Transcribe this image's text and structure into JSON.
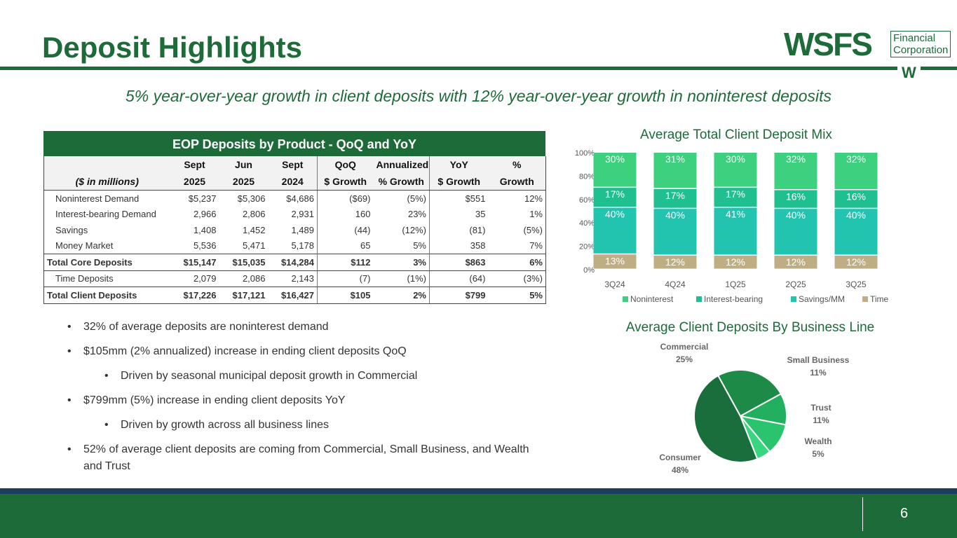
{
  "header": {
    "title": "Deposit Highlights",
    "subtitle": "5% year-over-year growth in client deposits with 12% year-over-year growth in noninterest deposits",
    "logo": {
      "main": "WSFS",
      "sub_line1": "Financial",
      "sub_line2": "Corporation",
      "mark": "W"
    }
  },
  "colors": {
    "brand_green": "#1e6b3a",
    "noninterest": "#3dd17f",
    "interest_bearing": "#1fbf8f",
    "savings_mm": "#22c4b0",
    "time": "#bfae84",
    "footer_navy": "#1b3d5e"
  },
  "table": {
    "title": "EOP Deposits by Product - QoQ and YoY",
    "units": "($ in millions)",
    "header_row1": [
      "Sept",
      "Jun",
      "Sept",
      "QoQ",
      "Annualized",
      "YoY",
      "%"
    ],
    "header_row2": [
      "2025",
      "2025",
      "2024",
      "$ Growth",
      "% Growth",
      "$ Growth",
      "Growth"
    ],
    "rows": [
      {
        "label": "Noninterest Demand",
        "values": [
          "$5,237",
          "$5,306",
          "$4,686",
          "($69)",
          "(5%)",
          "$551",
          "12%"
        ]
      },
      {
        "label": "Interest-bearing Demand",
        "values": [
          "2,966",
          "2,806",
          "2,931",
          "160",
          "23%",
          "35",
          "1%"
        ]
      },
      {
        "label": "Savings",
        "values": [
          "1,408",
          "1,452",
          "1,489",
          "(44)",
          "(12%)",
          "(81)",
          "(5%)"
        ]
      },
      {
        "label": "Money Market",
        "values": [
          "5,536",
          "5,471",
          "5,178",
          "65",
          "5%",
          "358",
          "7%"
        ]
      },
      {
        "label": "Total Core Deposits",
        "values": [
          "$15,147",
          "$15,035",
          "$14,284",
          "$112",
          "3%",
          "$863",
          "6%"
        ]
      },
      {
        "label": "Time Deposits",
        "values": [
          "2,079",
          "2,086",
          "2,143",
          "(7)",
          "(1%)",
          "(64)",
          "(3%)"
        ]
      },
      {
        "label": "Total Client Deposits",
        "values": [
          "$17,226",
          "$17,121",
          "$16,427",
          "$105",
          "2%",
          "$799",
          "5%"
        ]
      }
    ]
  },
  "bullets": [
    {
      "text": "32% of average deposits are noninterest demand",
      "level": 1
    },
    {
      "text": "$105mm (2% annualized) increase in ending client deposits QoQ",
      "level": 1
    },
    {
      "text": "Driven by seasonal municipal deposit growth in Commercial",
      "level": 2
    },
    {
      "text": "$799mm (5%) increase in ending client deposits YoY",
      "level": 1
    },
    {
      "text": "Driven by growth across all business lines",
      "level": 2
    },
    {
      "text": "52% of average client deposits are coming from Commercial, Small Business, and Wealth and Trust",
      "level": 1
    }
  ],
  "bullet_glyph": "•",
  "chart_data": [
    {
      "type": "bar",
      "stacked": true,
      "title": "Average Total Client Deposit Mix",
      "categories": [
        "3Q24",
        "4Q24",
        "1Q25",
        "2Q25",
        "3Q25"
      ],
      "series": [
        {
          "name": "Time",
          "values": [
            13,
            12,
            12,
            12,
            12
          ],
          "color": "#bfae84"
        },
        {
          "name": "Savings/MM",
          "values": [
            40,
            40,
            41,
            40,
            40
          ],
          "color": "#22c4b0"
        },
        {
          "name": "Interest-bearing",
          "values": [
            17,
            17,
            17,
            16,
            16
          ],
          "color": "#1fbf8f"
        },
        {
          "name": "Noninterest",
          "values": [
            30,
            31,
            30,
            32,
            32
          ],
          "color": "#3dd17f"
        }
      ],
      "legend_order": [
        "Noninterest",
        "Interest-bearing",
        "Savings/MM",
        "Time"
      ],
      "y_ticks": [
        "0%",
        "20%",
        "40%",
        "60%",
        "80%",
        "100%"
      ],
      "ylim": [
        0,
        100
      ],
      "legend": "bottom",
      "grid": false
    },
    {
      "type": "pie",
      "title": "Average Client Deposits By Business Line",
      "slices": [
        {
          "name": "Commercial",
          "value": 25,
          "label": "25%",
          "color": "#1e8a48"
        },
        {
          "name": "Small Business",
          "value": 11,
          "label": "11%",
          "color": "#22b060"
        },
        {
          "name": "Trust",
          "value": 11,
          "label": "11%",
          "color": "#2bc46e"
        },
        {
          "name": "Wealth",
          "value": 5,
          "label": "5%",
          "color": "#38d67f"
        },
        {
          "name": "Consumer",
          "value": 48,
          "label": "48%",
          "color": "#1a6e3c"
        }
      ],
      "legend": "none"
    }
  ],
  "footer": {
    "page_number": "6"
  }
}
